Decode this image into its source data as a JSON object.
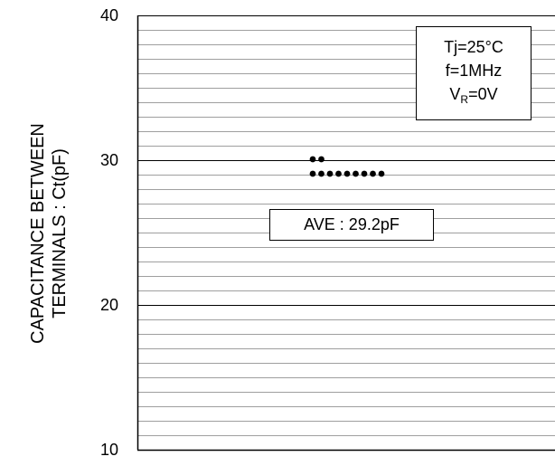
{
  "chart_data": {
    "type": "scatter",
    "ylabel_line1": "CAPACITANCE BETWEEN",
    "ylabel_line2": "TERMINALS : Ct(pF)",
    "ylim": [
      10,
      40
    ],
    "yticks": [
      10,
      20,
      30,
      40
    ],
    "minor_grid_step": 1,
    "grid": true,
    "points": [
      {
        "y": 30
      },
      {
        "y": 30
      },
      {
        "y": 29
      },
      {
        "y": 29
      },
      {
        "y": 29
      },
      {
        "y": 29
      },
      {
        "y": 29
      },
      {
        "y": 29
      },
      {
        "y": 29
      },
      {
        "y": 29
      },
      {
        "y": 29
      }
    ],
    "conditions": {
      "tj": "Tj=25°C",
      "freq": "f=1MHz",
      "vr_prefix": "V",
      "vr_sub": "R",
      "vr_suffix": "=0V"
    },
    "average_label": "AVE : 29.2pF",
    "colors": {
      "grid": "#000000",
      "points": "#000000",
      "background": "#ffffff"
    }
  }
}
